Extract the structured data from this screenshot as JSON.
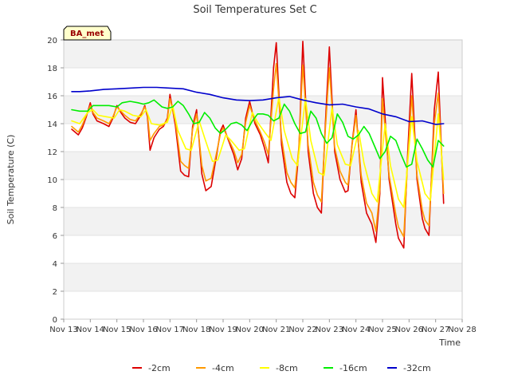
{
  "chart_data": {
    "type": "line",
    "title": "Soil Temperatures Set C",
    "xlabel": "Time",
    "ylabel": "Soil Temperature (C)",
    "badge": "BA_met",
    "x_unit": "day of November",
    "xlim": [
      13,
      28
    ],
    "ylim": [
      0,
      20
    ],
    "x_ticks": [
      13,
      14,
      15,
      16,
      17,
      18,
      19,
      20,
      21,
      22,
      23,
      24,
      25,
      26,
      27,
      28
    ],
    "x_tick_labels": [
      "Nov 13",
      "Nov 14",
      "Nov 15",
      "Nov 16",
      "Nov 17",
      "Nov 18",
      "Nov 19",
      "Nov 20",
      "Nov 21",
      "Nov 22",
      "Nov 23",
      "Nov 24",
      "Nov 25",
      "Nov 26",
      "Nov 27",
      "Nov 28"
    ],
    "y_ticks": [
      0,
      2,
      4,
      6,
      8,
      10,
      12,
      14,
      16,
      18,
      20
    ],
    "y_tick_labels": [
      "0",
      "2",
      "4",
      "6",
      "8",
      "10",
      "12",
      "14",
      "16",
      "18",
      "20"
    ],
    "grid": "horizontal, alternating shaded bands",
    "legend_position": "bottom",
    "series": [
      {
        "name": "-2cm",
        "color": "#dd0000",
        "x": [
          13.3,
          13.55,
          13.7,
          13.85,
          14.0,
          14.1,
          14.25,
          14.5,
          14.7,
          14.85,
          15.0,
          15.15,
          15.3,
          15.5,
          15.7,
          15.9,
          16.05,
          16.15,
          16.25,
          16.4,
          16.6,
          16.75,
          16.9,
          17.0,
          17.2,
          17.4,
          17.55,
          17.7,
          17.85,
          18.0,
          18.2,
          18.35,
          18.55,
          18.75,
          18.9,
          19.0,
          19.2,
          19.4,
          19.55,
          19.7,
          19.85,
          20.0,
          20.2,
          20.4,
          20.55,
          20.7,
          20.9,
          21.0,
          21.2,
          21.4,
          21.55,
          21.7,
          21.85,
          22.0,
          22.2,
          22.4,
          22.55,
          22.7,
          22.85,
          23.0,
          23.2,
          23.4,
          23.6,
          23.7,
          23.85,
          24.0,
          24.2,
          24.4,
          24.6,
          24.75,
          24.9,
          25.0,
          25.25,
          25.5,
          25.6,
          25.8,
          25.95,
          26.1,
          26.3,
          26.5,
          26.6,
          26.75,
          26.95,
          27.1,
          27.3
        ],
        "y": [
          13.6,
          13.2,
          13.7,
          14.5,
          15.5,
          14.7,
          14.2,
          14.0,
          13.8,
          14.4,
          15.3,
          14.8,
          14.4,
          14.1,
          14.0,
          14.6,
          15.3,
          14.5,
          12.1,
          13.0,
          13.6,
          13.8,
          14.4,
          16.1,
          13.9,
          10.6,
          10.3,
          10.2,
          13.8,
          15.0,
          10.4,
          9.2,
          9.5,
          11.7,
          13.5,
          13.9,
          12.8,
          11.8,
          10.7,
          11.5,
          14.4,
          15.6,
          14.0,
          13.2,
          12.3,
          11.2,
          18.0,
          19.8,
          12.5,
          9.8,
          9.0,
          8.7,
          12.0,
          19.9,
          12.0,
          9.0,
          8.0,
          7.6,
          14.0,
          19.5,
          12.0,
          10.0,
          9.1,
          9.2,
          12.5,
          15.0,
          9.8,
          7.6,
          6.8,
          5.5,
          9.0,
          17.3,
          10.0,
          6.8,
          5.8,
          5.1,
          12.0,
          17.6,
          10.0,
          7.2,
          6.5,
          6.0,
          15.0,
          17.7,
          8.3
        ]
      },
      {
        "name": "-4cm",
        "color": "#ff9900",
        "x": [
          13.3,
          13.55,
          13.7,
          13.85,
          14.0,
          14.1,
          14.25,
          14.5,
          14.7,
          14.85,
          15.0,
          15.15,
          15.3,
          15.5,
          15.7,
          15.9,
          16.05,
          16.15,
          16.25,
          16.4,
          16.6,
          16.75,
          16.9,
          17.0,
          17.2,
          17.4,
          17.55,
          17.7,
          17.85,
          18.0,
          18.2,
          18.35,
          18.55,
          18.75,
          18.9,
          19.0,
          19.2,
          19.4,
          19.55,
          19.7,
          19.85,
          20.0,
          20.2,
          20.4,
          20.55,
          20.7,
          20.9,
          21.0,
          21.2,
          21.4,
          21.55,
          21.7,
          21.85,
          22.0,
          22.2,
          22.4,
          22.55,
          22.7,
          22.85,
          23.0,
          23.2,
          23.4,
          23.6,
          23.7,
          23.85,
          24.0,
          24.2,
          24.4,
          24.6,
          24.75,
          24.9,
          25.0,
          25.25,
          25.5,
          25.6,
          25.8,
          25.95,
          26.1,
          26.3,
          26.5,
          26.6,
          26.75,
          26.95,
          27.1,
          27.3
        ],
        "y": [
          13.8,
          13.4,
          13.9,
          14.6,
          15.3,
          14.8,
          14.4,
          14.2,
          14.0,
          14.5,
          15.2,
          14.9,
          14.6,
          14.3,
          14.2,
          14.7,
          15.2,
          14.7,
          12.8,
          13.3,
          13.8,
          13.9,
          14.3,
          15.8,
          14.2,
          11.3,
          11.0,
          10.8,
          13.6,
          14.7,
          11.0,
          9.9,
          10.1,
          11.9,
          13.3,
          13.7,
          12.9,
          12.1,
          11.2,
          11.8,
          14.1,
          15.3,
          14.2,
          13.4,
          12.7,
          11.8,
          16.5,
          18.3,
          13.0,
          10.5,
          9.8,
          9.4,
          12.3,
          18.2,
          12.5,
          9.8,
          8.9,
          8.4,
          13.6,
          18.0,
          12.3,
          10.6,
          9.8,
          9.6,
          12.4,
          14.6,
          10.3,
          8.3,
          7.6,
          6.3,
          9.3,
          15.8,
          10.3,
          7.5,
          6.6,
          5.9,
          11.5,
          16.0,
          10.3,
          7.8,
          7.1,
          6.7,
          14.0,
          16.2,
          9.0
        ]
      },
      {
        "name": "-8cm",
        "color": "#ffff00",
        "x": [
          13.3,
          13.6,
          13.9,
          14.1,
          14.3,
          14.6,
          14.9,
          15.1,
          15.3,
          15.6,
          15.9,
          16.1,
          16.3,
          16.6,
          16.9,
          17.1,
          17.3,
          17.6,
          17.8,
          18.1,
          18.3,
          18.6,
          18.8,
          19.1,
          19.3,
          19.6,
          19.8,
          20.1,
          20.3,
          20.6,
          20.8,
          21.1,
          21.3,
          21.6,
          21.8,
          22.1,
          22.3,
          22.6,
          22.8,
          23.1,
          23.3,
          23.6,
          23.8,
          24.1,
          24.3,
          24.6,
          24.8,
          25.1,
          25.3,
          25.6,
          25.8,
          26.1,
          26.3,
          26.6,
          26.8,
          27.1,
          27.3
        ],
        "y": [
          14.2,
          14.0,
          14.8,
          15.0,
          14.6,
          14.5,
          14.4,
          15.0,
          14.9,
          14.6,
          14.5,
          15.0,
          14.0,
          13.9,
          14.1,
          15.3,
          13.5,
          12.2,
          12.1,
          14.2,
          13.0,
          11.3,
          11.4,
          13.2,
          12.8,
          12.1,
          12.2,
          14.8,
          14.1,
          13.3,
          12.8,
          15.9,
          13.5,
          11.5,
          11.0,
          15.8,
          12.8,
          10.5,
          10.3,
          15.2,
          12.5,
          11.1,
          11.0,
          13.5,
          11.2,
          9.0,
          8.4,
          14.0,
          11.0,
          8.6,
          8.0,
          14.5,
          11.3,
          9.0,
          8.5,
          14.7,
          10.0
        ]
      },
      {
        "name": "-16cm",
        "color": "#00ee00",
        "x": [
          13.3,
          13.6,
          13.9,
          14.1,
          14.4,
          14.7,
          15.0,
          15.2,
          15.5,
          15.8,
          16.0,
          16.2,
          16.4,
          16.7,
          16.9,
          17.1,
          17.3,
          17.5,
          17.7,
          17.9,
          18.1,
          18.3,
          18.5,
          18.7,
          18.9,
          19.1,
          19.3,
          19.5,
          19.7,
          19.9,
          20.1,
          20.3,
          20.5,
          20.7,
          20.9,
          21.1,
          21.3,
          21.5,
          21.7,
          21.9,
          22.1,
          22.3,
          22.5,
          22.7,
          22.9,
          23.1,
          23.3,
          23.5,
          23.7,
          23.9,
          24.1,
          24.3,
          24.5,
          24.7,
          24.9,
          25.1,
          25.3,
          25.5,
          25.7,
          25.9,
          26.1,
          26.3,
          26.5,
          26.7,
          26.9,
          27.1,
          27.3
        ],
        "y": [
          15.0,
          14.9,
          14.9,
          15.3,
          15.3,
          15.3,
          15.2,
          15.5,
          15.6,
          15.5,
          15.4,
          15.5,
          15.7,
          15.2,
          15.1,
          15.2,
          15.6,
          15.3,
          14.7,
          14.0,
          14.1,
          14.8,
          14.4,
          13.7,
          13.3,
          13.6,
          14.0,
          14.1,
          13.9,
          13.5,
          14.2,
          14.7,
          14.7,
          14.6,
          14.2,
          14.4,
          15.4,
          14.9,
          14.0,
          13.3,
          13.4,
          14.9,
          14.4,
          13.3,
          12.6,
          13.0,
          14.7,
          14.1,
          13.1,
          12.9,
          13.2,
          13.8,
          13.3,
          12.4,
          11.5,
          12.0,
          13.1,
          12.8,
          11.8,
          10.9,
          11.1,
          12.9,
          12.2,
          11.4,
          10.9,
          12.8,
          12.4
        ]
      },
      {
        "name": "-32cm",
        "color": "#0000cc",
        "x": [
          13.3,
          13.6,
          14.0,
          14.5,
          15.0,
          15.5,
          16.0,
          16.5,
          17.0,
          17.5,
          18.0,
          18.5,
          19.0,
          19.5,
          20.0,
          20.5,
          21.0,
          21.5,
          22.0,
          22.5,
          23.0,
          23.5,
          24.0,
          24.5,
          25.0,
          25.5,
          26.0,
          26.5,
          27.0,
          27.3
        ],
        "y": [
          16.3,
          16.3,
          16.35,
          16.45,
          16.5,
          16.55,
          16.6,
          16.6,
          16.55,
          16.5,
          16.25,
          16.1,
          15.85,
          15.7,
          15.65,
          15.7,
          15.85,
          15.95,
          15.7,
          15.5,
          15.35,
          15.4,
          15.2,
          15.05,
          14.7,
          14.5,
          14.15,
          14.2,
          13.95,
          14.0
        ]
      }
    ]
  }
}
